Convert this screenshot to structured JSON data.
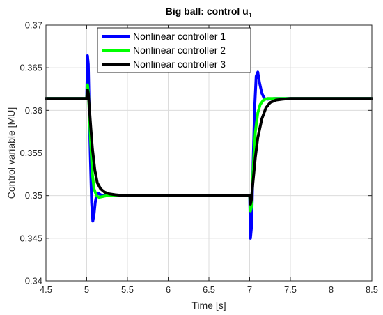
{
  "chart_data": {
    "type": "line",
    "title": "Big ball: control u",
    "title_subscript": "1",
    "xlabel": "Time [s]",
    "ylabel": "Control variable [MU]",
    "xlim": [
      4.5,
      8.5
    ],
    "ylim": [
      0.34,
      0.37
    ],
    "xticks": [
      4.5,
      5,
      5.5,
      6,
      6.5,
      7,
      7.5,
      8,
      8.5
    ],
    "xtick_labels": [
      "4.5",
      "5",
      "5.5",
      "6",
      "6.5",
      "7",
      "7.5",
      "8",
      "8.5"
    ],
    "yticks": [
      0.34,
      0.345,
      0.35,
      0.355,
      0.36,
      0.365,
      0.37
    ],
    "ytick_labels": [
      "0.34",
      "0.345",
      "0.35",
      "0.355",
      "0.36",
      "0.365",
      "0.37"
    ],
    "grid": true,
    "legend_position": "top-center",
    "series": [
      {
        "name": "Nonlinear controller 1",
        "color": "#0000ff",
        "x": [
          4.5,
          5.0,
          5.01,
          5.02,
          5.03,
          5.045,
          5.06,
          5.075,
          5.09,
          5.105,
          5.12,
          5.14,
          5.17,
          5.2,
          5.25,
          5.3,
          5.4,
          5.6,
          6.0,
          6.5,
          6.99,
          7.0,
          7.01,
          7.025,
          7.04,
          7.06,
          7.08,
          7.1,
          7.12,
          7.15,
          7.18,
          7.22,
          7.3,
          7.4,
          7.6,
          8.0,
          8.5
        ],
        "y": [
          0.3614,
          0.3614,
          0.3664,
          0.3654,
          0.3605,
          0.3545,
          0.3492,
          0.347,
          0.3478,
          0.3492,
          0.35,
          0.3503,
          0.3501,
          0.35,
          0.35,
          0.35,
          0.35,
          0.35,
          0.35,
          0.35,
          0.35,
          0.35,
          0.345,
          0.3465,
          0.353,
          0.36,
          0.364,
          0.3645,
          0.3633,
          0.362,
          0.3614,
          0.3613,
          0.3614,
          0.3614,
          0.3614,
          0.3614,
          0.3614
        ]
      },
      {
        "name": "Nonlinear controller 2",
        "color": "#00ff00",
        "x": [
          4.5,
          5.0,
          5.01,
          5.02,
          5.035,
          5.05,
          5.07,
          5.09,
          5.12,
          5.15,
          5.2,
          5.25,
          5.3,
          5.4,
          5.6,
          6.0,
          6.5,
          6.99,
          7.0,
          7.01,
          7.02,
          7.035,
          7.05,
          7.07,
          7.1,
          7.13,
          7.17,
          7.22,
          7.3,
          7.4,
          7.5,
          7.6,
          8.0,
          8.5
        ],
        "y": [
          0.3614,
          0.3614,
          0.363,
          0.3622,
          0.359,
          0.356,
          0.3525,
          0.3508,
          0.35,
          0.3498,
          0.3499,
          0.35,
          0.35,
          0.35,
          0.35,
          0.35,
          0.35,
          0.35,
          0.35,
          0.3482,
          0.3486,
          0.3515,
          0.3545,
          0.3575,
          0.3597,
          0.3607,
          0.3612,
          0.3614,
          0.3614,
          0.3614,
          0.3614,
          0.3614,
          0.3614,
          0.3614
        ]
      },
      {
        "name": "Nonlinear controller 3",
        "color": "#000000",
        "x": [
          4.5,
          5.0,
          5.01,
          5.02,
          5.035,
          5.05,
          5.07,
          5.1,
          5.13,
          5.17,
          5.22,
          5.28,
          5.35,
          5.45,
          5.6,
          6.0,
          6.5,
          6.99,
          7.0,
          7.01,
          7.02,
          7.04,
          7.07,
          7.1,
          7.15,
          7.2,
          7.25,
          7.32,
          7.4,
          7.5,
          7.6,
          8.0,
          8.5
        ],
        "y": [
          0.3614,
          0.3614,
          0.3624,
          0.362,
          0.36,
          0.358,
          0.3555,
          0.353,
          0.3515,
          0.3508,
          0.3504,
          0.3502,
          0.3501,
          0.35,
          0.35,
          0.35,
          0.35,
          0.35,
          0.35,
          0.349,
          0.3494,
          0.3515,
          0.3545,
          0.3568,
          0.359,
          0.3603,
          0.3609,
          0.3612,
          0.3613,
          0.3614,
          0.3614,
          0.3614,
          0.3614
        ]
      }
    ]
  }
}
